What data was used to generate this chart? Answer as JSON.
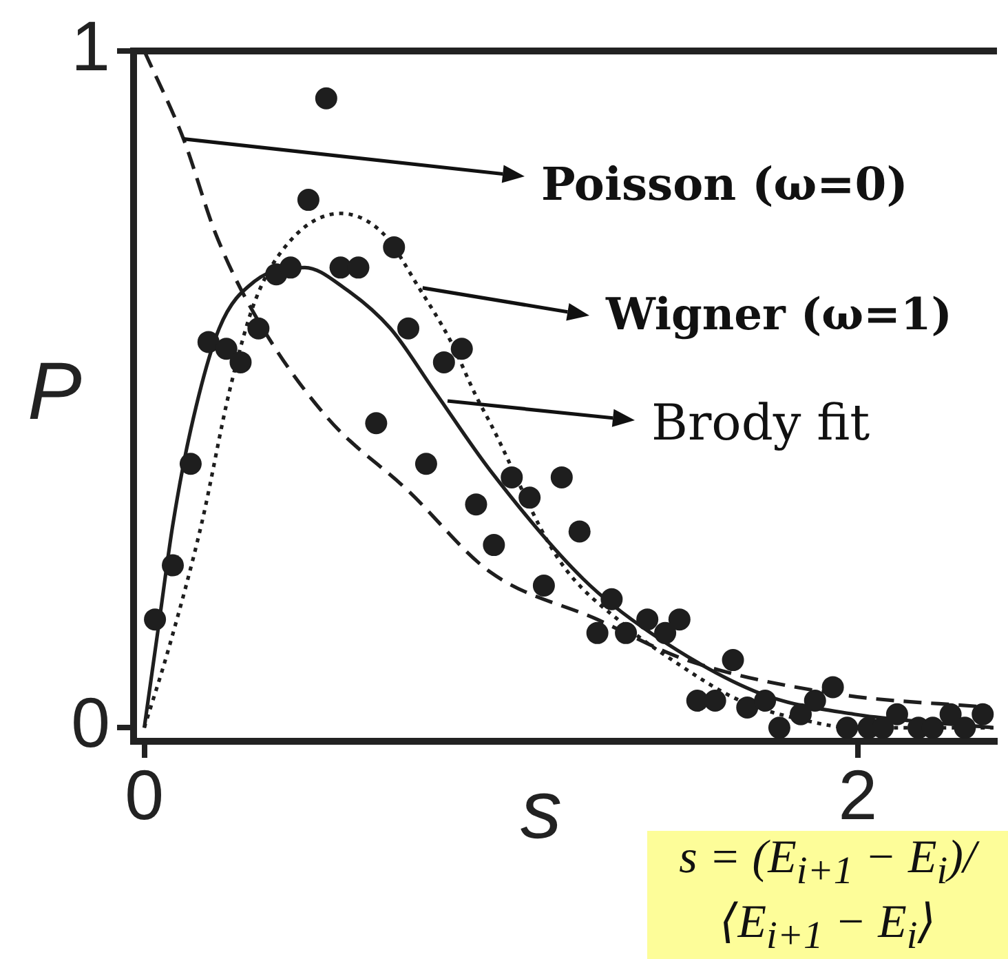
{
  "chart_data": {
    "type": "scatter",
    "xlabel": "s",
    "ylabel": "P",
    "xlim": [
      -0.03,
      2.39
    ],
    "ylim": [
      -0.02,
      1
    ],
    "xticks": [
      0,
      2
    ],
    "yticks": [
      0,
      1
    ],
    "marker": "circle",
    "series": [
      {
        "color": "#1e1e1e",
        "x": [
          0.03,
          0.08,
          0.13,
          0.18,
          0.23,
          0.27,
          0.32,
          0.37,
          0.41,
          0.46,
          0.51,
          0.55,
          0.6,
          0.65,
          0.7,
          0.74,
          0.79,
          0.84,
          0.89,
          0.93,
          0.98,
          1.03,
          1.08,
          1.12,
          1.17,
          1.22,
          1.27,
          1.31,
          1.35,
          1.41,
          1.46,
          1.5,
          1.55,
          1.6,
          1.65,
          1.69,
          1.74,
          1.78,
          1.84,
          1.88,
          1.93,
          1.97,
          2.03,
          2.07,
          2.11,
          2.17,
          2.21,
          2.26,
          2.3,
          2.35
        ],
        "values": [
          0.16,
          0.24,
          0.39,
          0.57,
          0.56,
          0.54,
          0.59,
          0.67,
          0.68,
          0.78,
          0.93,
          0.68,
          0.68,
          0.45,
          0.71,
          0.59,
          0.39,
          0.54,
          0.56,
          0.33,
          0.27,
          0.37,
          0.34,
          0.21,
          0.37,
          0.29,
          0.14,
          0.19,
          0.14,
          0.16,
          0.14,
          0.16,
          0.04,
          0.04,
          0.1,
          0.03,
          0.04,
          0,
          0.02,
          0.04,
          0.06,
          0,
          0,
          0,
          0.02,
          0,
          0,
          0.02,
          0,
          0.02
        ]
      },
      {
        "type": "line",
        "color": "#1e1e1e",
        "line_style": "dashed",
        "marker": "none",
        "x": [
          0,
          0.11,
          0.2,
          0.31,
          0.51,
          0.74,
          0.97,
          1.27,
          1.52,
          1.94,
          2.37
        ],
        "values": [
          1,
          0.87,
          0.73,
          0.61,
          0.46,
          0.35,
          0.23,
          0.16,
          0.1,
          0.05,
          0.03
        ]
      },
      {
        "type": "line",
        "color": "#1e1e1e",
        "line_style": "dotted",
        "marker": "none",
        "x": [
          0,
          0.07,
          0.16,
          0.24,
          0.31,
          0.41,
          0.55,
          0.67,
          0.77,
          0.86,
          0.93,
          0.97,
          1.16,
          1.35,
          1.48,
          1.67,
          1.86,
          1.99,
          2.2,
          2.38
        ],
        "values": [
          0,
          0.12,
          0.3,
          0.5,
          0.63,
          0.72,
          0.76,
          0.73,
          0.65,
          0.57,
          0.49,
          0.45,
          0.25,
          0.15,
          0.1,
          0.04,
          0.01,
          0,
          0,
          0
        ]
      },
      {
        "type": "line",
        "color": "#1e1e1e",
        "line_style": "solid",
        "marker": "none",
        "x": [
          0,
          0.04,
          0.08,
          0.13,
          0.21,
          0.31,
          0.45,
          0.56,
          0.69,
          0.81,
          0.97,
          1.23,
          1.42,
          1.73,
          1.99,
          2.38
        ],
        "values": [
          0,
          0.15,
          0.3,
          0.44,
          0.59,
          0.66,
          0.68,
          0.65,
          0.59,
          0.5,
          0.38,
          0.22,
          0.14,
          0.05,
          0.02,
          0
        ]
      }
    ],
    "annotations": [
      {
        "text": "Poisson (ω=0)",
        "x": 0.11,
        "y": 0.87
      },
      {
        "text": "Wigner (ω=1)",
        "x": 0.78,
        "y": 0.65
      },
      "Brody fit",
      "s = (E$_{i+1}$ − E$_{i}$)/⟨E$_{i+1}$ − E$_{i}$⟩"
    ]
  }
}
